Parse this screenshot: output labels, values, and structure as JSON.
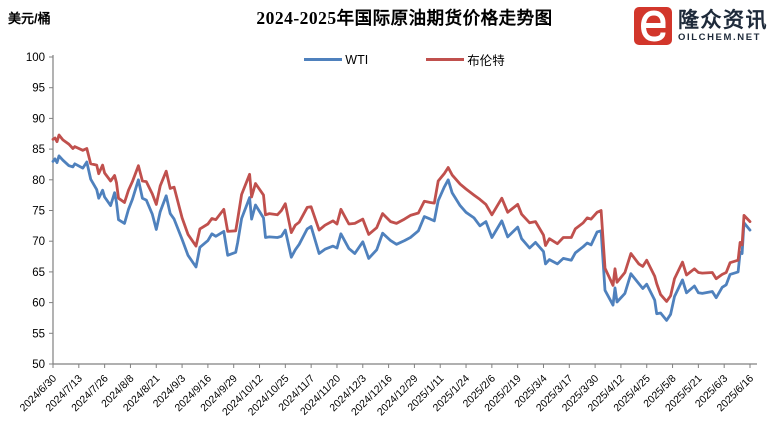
{
  "header": {
    "unit_label": "美元/桶",
    "title": "2024-2025年国际原油期货价格走势图"
  },
  "legend": [
    {
      "name": "WTI",
      "color": "#4F81BD"
    },
    {
      "name": "布伦特",
      "color": "#C0504D"
    }
  ],
  "logo": {
    "icon": "oilchem-e-icon",
    "icon_color": "#D2362B",
    "brand_cn": "隆众资讯",
    "brand_en": "OILCHEM.NET",
    "text_color": "#1E2A3A"
  },
  "chart_data": {
    "type": "line",
    "title": "2024-2025年国际原油期货价格走势图",
    "xlabel": "",
    "ylabel": "美元/桶",
    "ylim": [
      50,
      100
    ],
    "ytick_step": 5,
    "grid": false,
    "legend_position": "top-center",
    "axis_color": "#808080",
    "x_tick_labels": [
      "2024/6/30",
      "2024/7/13",
      "2024/7/26",
      "2024/8/8",
      "2024/8/21",
      "2024/9/3",
      "2024/9/16",
      "2024/9/29",
      "2024/10/12",
      "2024/10/25",
      "2024/11/7",
      "2024/11/20",
      "2024/12/3",
      "2024/12/16",
      "2024/12/29",
      "2025/1/11",
      "2025/1/24",
      "2025/2/6",
      "2025/2/19",
      "2025/3/4",
      "2025/3/17",
      "2025/3/30",
      "2025/4/12",
      "2025/4/25",
      "2025/5/8",
      "2025/5/21",
      "2025/6/3",
      "2025/6/16"
    ],
    "x": [
      "2024/6/30",
      "2024/7/1",
      "2024/7/2",
      "2024/7/3",
      "2024/7/5",
      "2024/7/8",
      "2024/7/10",
      "2024/7/11",
      "2024/7/15",
      "2024/7/17",
      "2024/7/19",
      "2024/7/22",
      "2024/7/23",
      "2024/7/25",
      "2024/7/26",
      "2024/7/29",
      "2024/7/31",
      "2024/8/1",
      "2024/8/2",
      "2024/8/5",
      "2024/8/7",
      "2024/8/9",
      "2024/8/12",
      "2024/8/14",
      "2024/8/16",
      "2024/8/19",
      "2024/8/21",
      "2024/8/23",
      "2024/8/26",
      "2024/8/28",
      "2024/8/30",
      "2024/9/3",
      "2024/9/6",
      "2024/9/10",
      "2024/9/12",
      "2024/9/16",
      "2024/9/18",
      "2024/9/20",
      "2024/9/24",
      "2024/9/26",
      "2024/9/30",
      "2024/10/1",
      "2024/10/3",
      "2024/10/7",
      "2024/10/8",
      "2024/10/10",
      "2024/10/14",
      "2024/10/15",
      "2024/10/17",
      "2024/10/21",
      "2024/10/23",
      "2024/10/25",
      "2024/10/28",
      "2024/10/30",
      "2024/11/1",
      "2024/11/5",
      "2024/11/7",
      "2024/11/11",
      "2024/11/14",
      "2024/11/18",
      "2024/11/20",
      "2024/11/22",
      "2024/11/26",
      "2024/11/29",
      "2024/12/3",
      "2024/12/6",
      "2024/12/10",
      "2024/12/13",
      "2024/12/17",
      "2024/12/20",
      "2024/12/24",
      "2024/12/27",
      "2024/12/31",
      "2025/1/3",
      "2025/1/6",
      "2025/1/8",
      "2025/1/10",
      "2025/1/13",
      "2025/1/15",
      "2025/1/17",
      "2025/1/21",
      "2025/1/24",
      "2025/1/28",
      "2025/1/31",
      "2025/2/3",
      "2025/2/6",
      "2025/2/11",
      "2025/2/14",
      "2025/2/19",
      "2025/2/21",
      "2025/2/25",
      "2025/2/28",
      "2025/3/4",
      "2025/3/5",
      "2025/3/7",
      "2025/3/11",
      "2025/3/14",
      "2025/3/18",
      "2025/3/20",
      "2025/3/24",
      "2025/3/26",
      "2025/3/28",
      "2025/3/31",
      "2025/4/2",
      "2025/4/4",
      "2025/4/8",
      "2025/4/9",
      "2025/4/10",
      "2025/4/14",
      "2025/4/17",
      "2025/4/21",
      "2025/4/23",
      "2025/4/25",
      "2025/4/29",
      "2025/4/30",
      "2025/5/2",
      "2025/5/5",
      "2025/5/7",
      "2025/5/9",
      "2025/5/13",
      "2025/5/15",
      "2025/5/19",
      "2025/5/21",
      "2025/5/23",
      "2025/5/28",
      "2025/5/30",
      "2025/6/2",
      "2025/6/4",
      "2025/6/6",
      "2025/6/10",
      "2025/6/11",
      "2025/6/12",
      "2025/6/13",
      "2025/6/16"
    ],
    "series": [
      {
        "name": "WTI",
        "color": "#4F81BD",
        "values": [
          83.0,
          83.4,
          82.8,
          83.9,
          83.2,
          82.3,
          82.1,
          82.6,
          81.9,
          82.9,
          80.1,
          78.4,
          77.0,
          78.3,
          77.2,
          75.8,
          77.9,
          76.3,
          73.5,
          72.9,
          75.2,
          76.8,
          80.0,
          77.0,
          76.7,
          74.4,
          71.9,
          74.8,
          77.4,
          74.5,
          73.6,
          70.3,
          67.7,
          65.8,
          69.0,
          70.1,
          71.2,
          70.8,
          71.6,
          67.7,
          68.2,
          69.8,
          73.7,
          77.1,
          73.6,
          75.9,
          73.8,
          70.6,
          70.7,
          70.6,
          70.8,
          71.8,
          67.4,
          68.6,
          69.5,
          72.0,
          72.4,
          68.0,
          68.7,
          69.2,
          68.9,
          71.2,
          68.8,
          68.0,
          69.9,
          67.2,
          68.6,
          71.3,
          70.1,
          69.5,
          70.1,
          70.6,
          71.7,
          74.0,
          73.6,
          73.3,
          76.6,
          78.8,
          80.0,
          77.9,
          75.8,
          74.7,
          73.8,
          72.5,
          73.2,
          70.6,
          73.3,
          70.7,
          72.3,
          70.4,
          68.9,
          69.8,
          68.3,
          66.3,
          67.0,
          66.3,
          67.2,
          66.9,
          68.1,
          69.1,
          69.7,
          69.4,
          71.5,
          71.7,
          62.0,
          59.6,
          62.4,
          60.1,
          61.5,
          64.7,
          63.1,
          62.3,
          63.0,
          60.4,
          58.2,
          58.3,
          57.1,
          58.1,
          61.0,
          63.7,
          61.6,
          62.7,
          61.6,
          61.5,
          61.8,
          60.8,
          62.5,
          62.9,
          64.6,
          65.0,
          68.2,
          68.0,
          73.0,
          71.8
        ]
      },
      {
        "name": "布伦特",
        "color": "#C0504D",
        "values": [
          86.6,
          86.8,
          86.2,
          87.3,
          86.5,
          85.8,
          85.1,
          85.4,
          84.8,
          85.1,
          82.6,
          82.4,
          81.0,
          82.4,
          81.1,
          79.8,
          80.7,
          79.5,
          77.0,
          76.3,
          78.3,
          79.7,
          82.3,
          79.8,
          79.7,
          77.7,
          76.0,
          79.0,
          81.4,
          78.6,
          78.8,
          73.8,
          71.1,
          69.2,
          72.0,
          72.8,
          73.7,
          73.5,
          75.2,
          71.6,
          71.7,
          73.6,
          77.6,
          80.9,
          77.2,
          79.4,
          77.5,
          74.3,
          74.5,
          74.3,
          75.0,
          76.1,
          71.4,
          72.6,
          73.1,
          75.5,
          75.6,
          71.8,
          72.6,
          73.3,
          72.8,
          75.2,
          72.8,
          72.9,
          73.6,
          71.1,
          72.2,
          74.5,
          73.2,
          72.9,
          73.6,
          74.2,
          74.6,
          76.5,
          76.3,
          76.2,
          79.8,
          81.0,
          82.0,
          80.8,
          79.3,
          78.5,
          77.5,
          76.8,
          76.0,
          74.3,
          77.0,
          74.7,
          76.0,
          74.4,
          73.0,
          73.2,
          71.0,
          69.3,
          70.4,
          69.6,
          70.6,
          70.6,
          72.0,
          73.0,
          73.8,
          73.6,
          74.7,
          75.0,
          65.6,
          62.8,
          65.5,
          63.3,
          64.9,
          68.0,
          66.3,
          65.9,
          66.9,
          64.3,
          63.1,
          61.3,
          60.2,
          61.1,
          63.9,
          66.6,
          64.5,
          65.5,
          64.9,
          64.8,
          64.9,
          63.9,
          64.6,
          64.9,
          66.5,
          66.9,
          69.8,
          69.4,
          74.2,
          73.2
        ]
      }
    ]
  }
}
